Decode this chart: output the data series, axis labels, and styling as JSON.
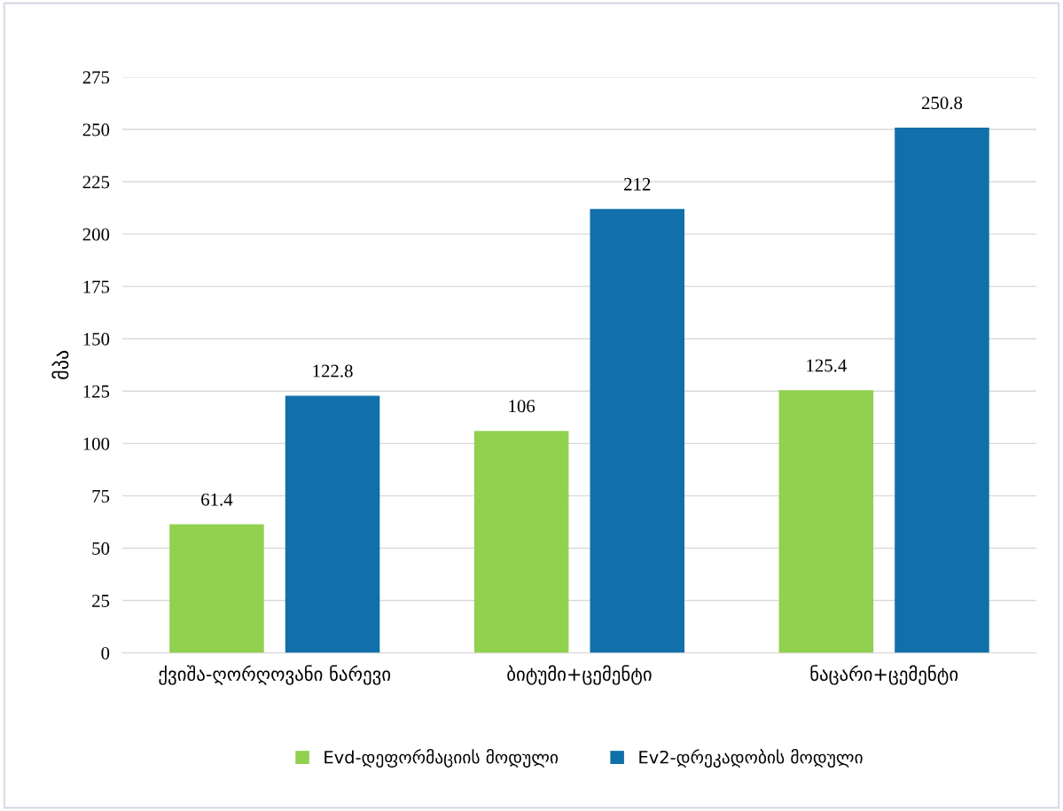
{
  "chart_data": {
    "type": "bar",
    "ylabel": "მპა",
    "categories": [
      "ქვიშა-ღორღოვანი ნარევი",
      "ბიტუმი+ცემენტი",
      "ნაცარი+ცემენტი"
    ],
    "series": [
      {
        "name": "Evd-დეფორმაციის მოდული",
        "color": "#92d050",
        "values": [
          61.4,
          106,
          125.4
        ]
      },
      {
        "name": "Ev2-დრეკადობის მოდული",
        "color": "#1170aa",
        "values": [
          122.8,
          212,
          250.8
        ]
      }
    ],
    "ylim": [
      0,
      275
    ],
    "yticks": [
      0,
      25,
      50,
      75,
      100,
      125,
      150,
      175,
      200,
      225,
      250,
      275
    ],
    "grid": "y",
    "legend": "bottom",
    "data_labels": true
  }
}
